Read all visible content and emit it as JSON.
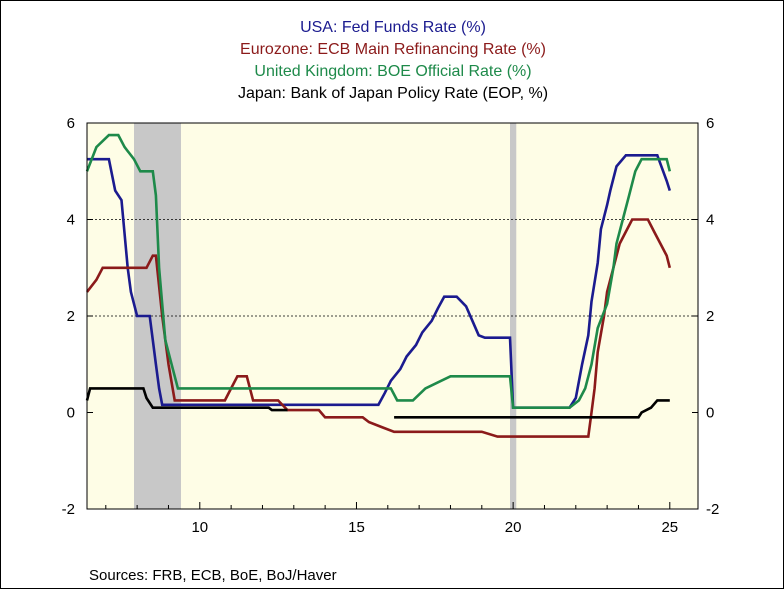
{
  "chart_data": {
    "type": "line",
    "title_lines": [
      {
        "text": "USA:  Fed Funds Rate (%)",
        "color": "#1b1b8f"
      },
      {
        "text": "Eurozone:  ECB Main Refinancing Rate (%)",
        "color": "#8b1a1a"
      },
      {
        "text": "United Kingdom:  BOE Official Rate (%)",
        "color": "#1e8a4a"
      },
      {
        "text": "Japan: Bank of Japan Policy Rate (EOP, %)",
        "color": "#000000"
      }
    ],
    "xlim": [
      6.4,
      25.9
    ],
    "ylim": [
      -2,
      6
    ],
    "x_ticks": [
      {
        "value": 10,
        "label": "10"
      },
      {
        "value": 15,
        "label": "15"
      },
      {
        "value": 20,
        "label": "20"
      },
      {
        "value": 25,
        "label": "25"
      }
    ],
    "y_ticks_left": [
      {
        "value": 6,
        "label": "6"
      },
      {
        "value": 4,
        "label": "4"
      },
      {
        "value": 2,
        "label": "2"
      },
      {
        "value": 0,
        "label": "0"
      },
      {
        "value": -2,
        "label": "-2"
      }
    ],
    "y_ticks_right": [
      {
        "value": 6,
        "label": "6"
      },
      {
        "value": 4,
        "label": "4"
      },
      {
        "value": 2,
        "label": "2"
      },
      {
        "value": 0,
        "label": "0"
      },
      {
        "value": -2,
        "label": "-2"
      }
    ],
    "gridlines_y": [
      4,
      2
    ],
    "recessions": [
      [
        7.9,
        9.4
      ],
      [
        19.9,
        20.1
      ]
    ],
    "background_color": "#fefde6",
    "recession_color": "#c8c8c8",
    "series": [
      {
        "color": "#1b1b8f",
        "points": [
          [
            6.4,
            5.25
          ],
          [
            7.1,
            5.25
          ],
          [
            7.3,
            4.6
          ],
          [
            7.5,
            4.4
          ],
          [
            7.7,
            3.0
          ],
          [
            7.8,
            2.5
          ],
          [
            8.0,
            2.0
          ],
          [
            8.4,
            2.0
          ],
          [
            8.5,
            1.5
          ],
          [
            8.6,
            1.0
          ],
          [
            8.7,
            0.5
          ],
          [
            8.8,
            0.16
          ],
          [
            15.7,
            0.16
          ],
          [
            15.9,
            0.4
          ],
          [
            16.1,
            0.66
          ],
          [
            16.4,
            0.9
          ],
          [
            16.6,
            1.16
          ],
          [
            16.9,
            1.4
          ],
          [
            17.1,
            1.66
          ],
          [
            17.4,
            1.9
          ],
          [
            17.6,
            2.16
          ],
          [
            17.8,
            2.4
          ],
          [
            18.2,
            2.4
          ],
          [
            18.5,
            2.2
          ],
          [
            18.7,
            1.9
          ],
          [
            18.9,
            1.6
          ],
          [
            19.1,
            1.55
          ],
          [
            19.9,
            1.55
          ],
          [
            20.0,
            0.1
          ],
          [
            21.8,
            0.1
          ],
          [
            22.0,
            0.3
          ],
          [
            22.2,
            1.0
          ],
          [
            22.4,
            1.6
          ],
          [
            22.5,
            2.3
          ],
          [
            22.7,
            3.1
          ],
          [
            22.8,
            3.8
          ],
          [
            23.0,
            4.3
          ],
          [
            23.1,
            4.6
          ],
          [
            23.3,
            5.1
          ],
          [
            23.6,
            5.33
          ],
          [
            24.6,
            5.33
          ],
          [
            24.9,
            4.8
          ],
          [
            25.0,
            4.6
          ]
        ]
      },
      {
        "color": "#8b1a1a",
        "points": [
          [
            6.4,
            2.5
          ],
          [
            6.7,
            2.75
          ],
          [
            6.9,
            3.0
          ],
          [
            7.6,
            3.0
          ],
          [
            8.3,
            3.0
          ],
          [
            8.5,
            3.25
          ],
          [
            8.6,
            3.25
          ],
          [
            8.8,
            2.0
          ],
          [
            9.0,
            1.0
          ],
          [
            9.2,
            0.25
          ],
          [
            10.2,
            0.25
          ],
          [
            10.8,
            0.25
          ],
          [
            11.0,
            0.5
          ],
          [
            11.2,
            0.75
          ],
          [
            11.5,
            0.75
          ],
          [
            11.7,
            0.25
          ],
          [
            12.5,
            0.25
          ],
          [
            12.8,
            0.05
          ],
          [
            13.8,
            0.05
          ],
          [
            14.0,
            -0.1
          ],
          [
            15.2,
            -0.1
          ],
          [
            15.4,
            -0.2
          ],
          [
            15.8,
            -0.3
          ],
          [
            16.2,
            -0.4
          ],
          [
            19.0,
            -0.4
          ],
          [
            19.5,
            -0.5
          ],
          [
            22.4,
            -0.5
          ],
          [
            22.5,
            0.0
          ],
          [
            22.6,
            0.5
          ],
          [
            22.7,
            1.25
          ],
          [
            22.9,
            2.0
          ],
          [
            23.0,
            2.5
          ],
          [
            23.2,
            3.0
          ],
          [
            23.4,
            3.5
          ],
          [
            23.6,
            3.75
          ],
          [
            23.8,
            4.0
          ],
          [
            24.3,
            4.0
          ],
          [
            24.5,
            3.75
          ],
          [
            24.7,
            3.5
          ],
          [
            24.9,
            3.25
          ],
          [
            25.0,
            3.0
          ]
        ]
      },
      {
        "color": "#1e8a4a",
        "points": [
          [
            6.4,
            5.0
          ],
          [
            6.7,
            5.5
          ],
          [
            7.1,
            5.75
          ],
          [
            7.4,
            5.75
          ],
          [
            7.6,
            5.5
          ],
          [
            7.9,
            5.25
          ],
          [
            8.1,
            5.0
          ],
          [
            8.5,
            5.0
          ],
          [
            8.6,
            4.5
          ],
          [
            8.7,
            3.0
          ],
          [
            8.9,
            1.5
          ],
          [
            9.1,
            1.0
          ],
          [
            9.3,
            0.5
          ],
          [
            16.1,
            0.5
          ],
          [
            16.3,
            0.25
          ],
          [
            16.8,
            0.25
          ],
          [
            17.2,
            0.5
          ],
          [
            18.0,
            0.75
          ],
          [
            19.9,
            0.75
          ],
          [
            20.0,
            0.1
          ],
          [
            21.8,
            0.1
          ],
          [
            22.1,
            0.25
          ],
          [
            22.3,
            0.5
          ],
          [
            22.5,
            1.0
          ],
          [
            22.7,
            1.75
          ],
          [
            23.0,
            2.25
          ],
          [
            23.2,
            3.0
          ],
          [
            23.3,
            3.5
          ],
          [
            23.5,
            4.0
          ],
          [
            23.7,
            4.5
          ],
          [
            23.9,
            5.0
          ],
          [
            24.1,
            5.25
          ],
          [
            24.9,
            5.25
          ],
          [
            25.0,
            5.0
          ]
        ]
      },
      {
        "color": "#000000",
        "points": [
          [
            6.4,
            0.25
          ],
          [
            6.5,
            0.5
          ],
          [
            7.1,
            0.5
          ],
          [
            8.2,
            0.5
          ],
          [
            8.3,
            0.3
          ],
          [
            8.5,
            0.1
          ],
          [
            10.0,
            0.1
          ],
          [
            12.2,
            0.1
          ],
          [
            12.3,
            0.05
          ],
          [
            12.8,
            0.05
          ],
          [
            null,
            null
          ],
          [
            16.2,
            -0.1
          ],
          [
            24.0,
            -0.1
          ],
          [
            24.1,
            0.0
          ],
          [
            24.4,
            0.1
          ],
          [
            24.6,
            0.25
          ],
          [
            25.0,
            0.25
          ]
        ]
      }
    ],
    "source_text": "Sources:  FRB, ECB, BoE, BoJ/Haver"
  }
}
